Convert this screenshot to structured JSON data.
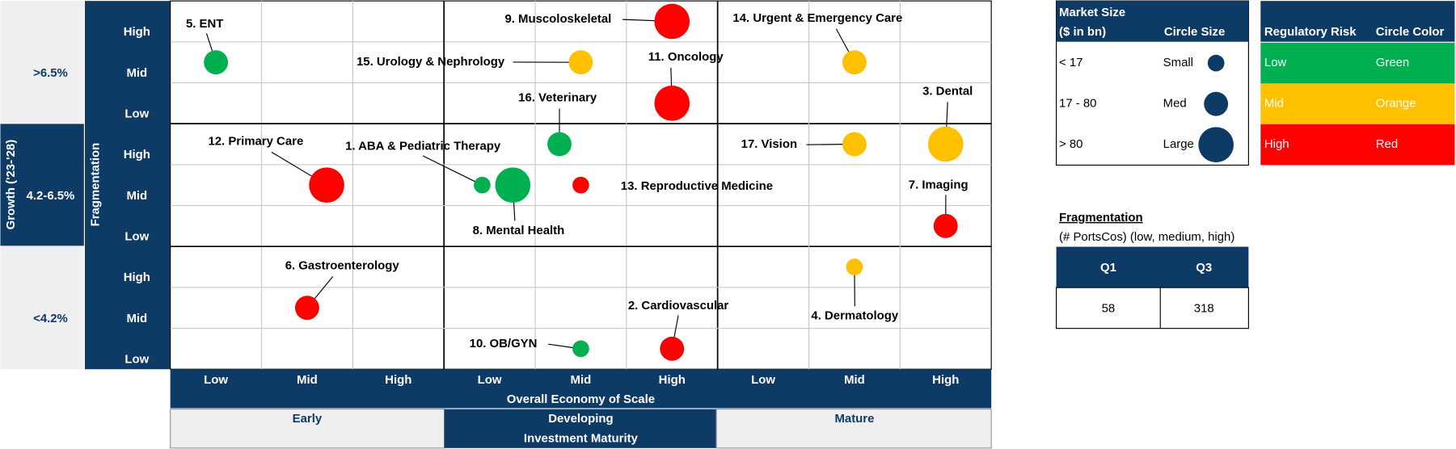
{
  "growth_axis": {
    "title": "Growth ('23-'28)",
    "bands": [
      ">6.5%",
      "4.2-6.5%",
      "<4.2%"
    ]
  },
  "fragmentation_axis": {
    "title": "Fragmentation",
    "levels": [
      "High",
      "Mid",
      "Low"
    ]
  },
  "scale_axis": {
    "title": "Overall Economy of Scale",
    "levels": [
      "Low",
      "Mid",
      "High"
    ]
  },
  "maturity_axis": {
    "title": "Investment Maturity",
    "bands": [
      "Early",
      "Developing",
      "Mature"
    ]
  },
  "bubbles": [
    {
      "label": "1. ABA & Pediatric Therapy",
      "growth": "4.2-6.5%",
      "fragmentation": "Mid",
      "maturity": "Developing",
      "scale": "Low",
      "size": "Small",
      "risk": "Low"
    },
    {
      "label": "2. Cardiovascular",
      "growth": "<4.2%",
      "fragmentation": "Low",
      "maturity": "Developing",
      "scale": "High",
      "size": "Med",
      "risk": "High"
    },
    {
      "label": "3. Dental",
      "growth": "4.2-6.5%",
      "fragmentation": "High",
      "maturity": "Mature",
      "scale": "High",
      "size": "Large",
      "risk": "Mid"
    },
    {
      "label": "4. Dermatology",
      "growth": "<4.2%",
      "fragmentation": "High",
      "maturity": "Mature",
      "scale": "Mid",
      "size": "Small",
      "risk": "Mid"
    },
    {
      "label": "5. ENT",
      "growth": ">6.5%",
      "fragmentation": "Mid",
      "maturity": "Early",
      "scale": "Low",
      "size": "Med",
      "risk": "Low"
    },
    {
      "label": "6. Gastroenterology",
      "growth": "<4.2%",
      "fragmentation": "Mid",
      "maturity": "Early",
      "scale": "Mid",
      "size": "Med",
      "risk": "High"
    },
    {
      "label": "7. Imaging",
      "growth": "4.2-6.5%",
      "fragmentation": "Low",
      "maturity": "Mature",
      "scale": "High",
      "size": "Med",
      "risk": "High"
    },
    {
      "label": "8. Mental Health",
      "growth": "4.2-6.5%",
      "fragmentation": "Mid",
      "maturity": "Developing",
      "scale": "Low",
      "size": "Large",
      "risk": "Low"
    },
    {
      "label": "9. Muscoloskeletal",
      "growth": ">6.5%",
      "fragmentation": "High",
      "maturity": "Developing",
      "scale": "High",
      "size": "Large",
      "risk": "High"
    },
    {
      "label": "10. OB/GYN",
      "growth": "<4.2%",
      "fragmentation": "Low",
      "maturity": "Developing",
      "scale": "Mid",
      "size": "Small",
      "risk": "Low"
    },
    {
      "label": "11. Oncology",
      "growth": ">6.5%",
      "fragmentation": "Low",
      "maturity": "Developing",
      "scale": "High",
      "size": "Large",
      "risk": "High"
    },
    {
      "label": "12. Primary Care",
      "growth": "4.2-6.5%",
      "fragmentation": "Mid",
      "maturity": "Early",
      "scale": "Mid",
      "size": "Large",
      "risk": "High"
    },
    {
      "label": "13. Reproductive Medicine",
      "growth": "4.2-6.5%",
      "fragmentation": "Mid",
      "maturity": "Developing",
      "scale": "Mid",
      "size": "Small",
      "risk": "High"
    },
    {
      "label": "14. Urgent & Emergency Care",
      "growth": ">6.5%",
      "fragmentation": "Mid",
      "maturity": "Mature",
      "scale": "Mid",
      "size": "Med",
      "risk": "Mid"
    },
    {
      "label": "15. Urology & Nephrology",
      "growth": ">6.5%",
      "fragmentation": "Mid",
      "maturity": "Developing",
      "scale": "Mid",
      "size": "Med",
      "risk": "Mid"
    },
    {
      "label": "16. Veterinary",
      "growth": "4.2-6.5%",
      "fragmentation": "High",
      "maturity": "Developing",
      "scale": "Mid",
      "size": "Med",
      "risk": "Low"
    },
    {
      "label": "17. Vision",
      "growth": "4.2-6.5%",
      "fragmentation": "High",
      "maturity": "Mature",
      "scale": "Mid",
      "size": "Med",
      "risk": "Mid"
    }
  ],
  "size_legend": {
    "title": "Market Size",
    "unit": "($ in bn)",
    "column": "Circle Size",
    "rows": [
      {
        "range": "< 17",
        "size": "Small"
      },
      {
        "range": "17 - 80",
        "size": "Med"
      },
      {
        "range": "> 80",
        "size": "Large"
      }
    ]
  },
  "risk_legend": {
    "title": "Regulatory Risk",
    "column": "Circle Color",
    "rows": [
      {
        "risk": "Low",
        "color_name": "Green",
        "color": "#00b050"
      },
      {
        "risk": "Mid",
        "color_name": "Orange",
        "color": "#ffc000"
      },
      {
        "risk": "High",
        "color_name": "Red",
        "color": "#ff0000"
      }
    ]
  },
  "fragmentation_table": {
    "title": "Fragmentation",
    "subtitle": "(# PortsCos) (low, medium, high)",
    "headers": [
      "Q1",
      "Q3"
    ],
    "values": [
      58,
      318
    ]
  }
}
